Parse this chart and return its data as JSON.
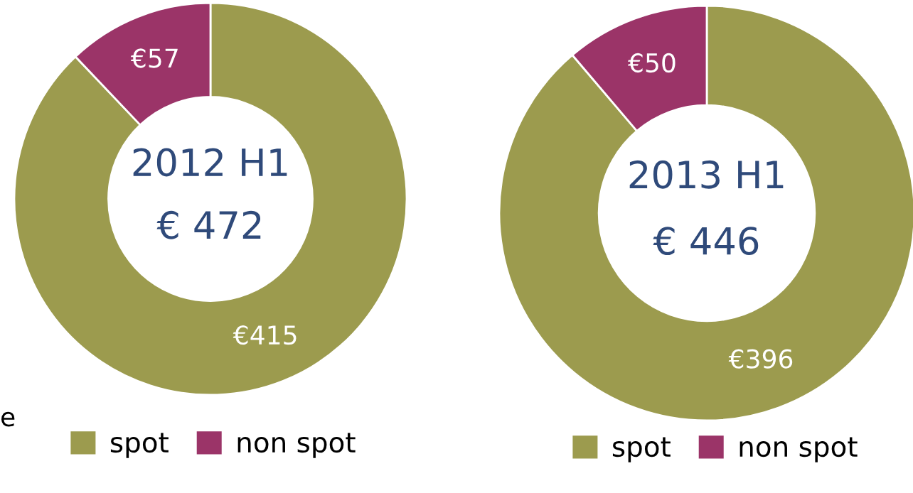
{
  "chart_data": [
    {
      "type": "donut",
      "title": "2012 H1",
      "subtitle": "€ 472",
      "categories": [
        "spot",
        "non spot"
      ],
      "values": [
        415,
        57
      ],
      "colors": [
        "#9c9b4e",
        "#9b3468"
      ],
      "value_labels": [
        "€415",
        "€57"
      ],
      "legend": "bottom",
      "annotations": [
        "e"
      ]
    },
    {
      "type": "donut",
      "title": "2013 H1",
      "subtitle": "€ 446",
      "categories": [
        "spot",
        "non spot"
      ],
      "values": [
        396,
        50
      ],
      "colors": [
        "#9c9b4e",
        "#9b3468"
      ],
      "value_labels": [
        "€396",
        "€50"
      ],
      "legend": "bottom"
    }
  ]
}
